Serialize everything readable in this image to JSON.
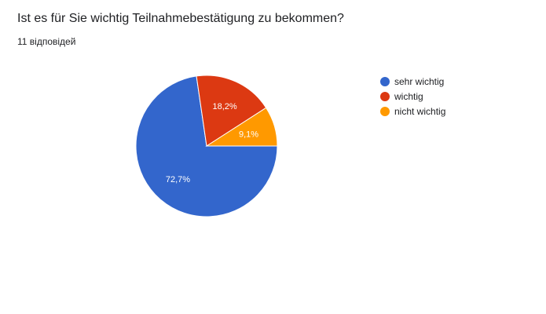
{
  "question": {
    "title": "Ist es für Sie wichtig Teilnahmebestätigung zu bekommen?",
    "responses": "11 відповідей"
  },
  "chart_data": {
    "type": "pie",
    "title": "Ist es für Sie wichtig Teilnahmebestätigung zu bekommen?",
    "categories": [
      "sehr wichtig",
      "wichtig",
      "nicht wichtig"
    ],
    "values": [
      72.7,
      18.2,
      9.1
    ],
    "labels": [
      "72,7%",
      "18,2%",
      "9,1%"
    ],
    "colors": [
      "#3366cc",
      "#dc3912",
      "#ff9900"
    ],
    "legend": "right"
  }
}
